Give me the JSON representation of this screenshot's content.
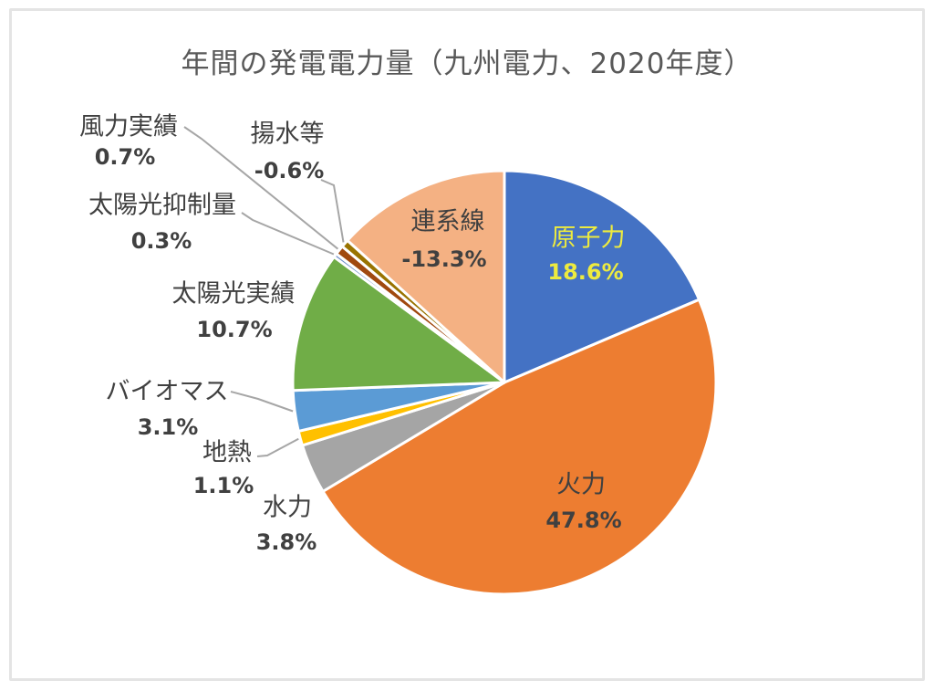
{
  "title": "年間の発電電力量（九州電力、2020年度）",
  "chart_data": {
    "type": "pie",
    "title": "年間の発電電力量（九州電力、2020年度）",
    "start_angle_deg": 0,
    "direction": "clockwise",
    "negative_values_note": "negative values (揚水等, 連系線) are drawn with their absolute share of the pie",
    "slices": [
      {
        "id": "nuclear",
        "label": "原子力",
        "value_pct": 18.6,
        "display": "18.6%",
        "color": "#4472C4",
        "label_placement": "inside",
        "label_color": "#EDEB3F",
        "leader_line": false
      },
      {
        "id": "thermal",
        "label": "火力",
        "value_pct": 47.8,
        "display": "47.8%",
        "color": "#ED7D31",
        "label_placement": "inside",
        "label_color": "#404040",
        "leader_line": false
      },
      {
        "id": "hydro",
        "label": "水力",
        "value_pct": 3.8,
        "display": "3.8%",
        "color": "#A5A5A5",
        "label_placement": "outside",
        "label_color": "#404040",
        "leader_line": false
      },
      {
        "id": "geothermal",
        "label": "地熱",
        "value_pct": 1.1,
        "display": "1.1%",
        "color": "#FFC000",
        "label_placement": "outside",
        "label_color": "#404040",
        "leader_line": true
      },
      {
        "id": "biomass",
        "label": "バイオマス",
        "value_pct": 3.1,
        "display": "3.1%",
        "color": "#5B9BD5",
        "label_placement": "outside",
        "label_color": "#404040",
        "leader_line": true
      },
      {
        "id": "solar-actual",
        "label": "太陽光実績",
        "value_pct": 10.7,
        "display": "10.7%",
        "color": "#70AD47",
        "label_placement": "outside",
        "label_color": "#404040",
        "leader_line": false
      },
      {
        "id": "solar-curtailment",
        "label": "太陽光抑制量",
        "value_pct": 0.3,
        "display": "0.3%",
        "color": "#6E8FC9",
        "label_placement": "outside",
        "label_color": "#404040",
        "leader_line": true
      },
      {
        "id": "wind-actual",
        "label": "風力実績",
        "value_pct": 0.7,
        "display": "0.7%",
        "color": "#A0490F",
        "label_placement": "outside",
        "label_color": "#404040",
        "leader_line": true
      },
      {
        "id": "pumped-storage",
        "label": "揚水等",
        "value_pct": -0.6,
        "display": "-0.6%",
        "color": "#997300",
        "label_placement": "outside",
        "label_color": "#404040",
        "leader_line": true
      },
      {
        "id": "interconnection",
        "label": "連系線",
        "value_pct": -13.3,
        "display": "-13.3%",
        "color": "#F4B183",
        "label_placement": "inside",
        "label_color": "#404040",
        "leader_line": false
      }
    ]
  },
  "colors": {
    "background": "#FFFFFF",
    "frame_border": "#E4E4E4",
    "title_text": "#595959",
    "label_text": "#404040",
    "nuclear_label_text": "#EDEB3F",
    "leader_line": "#A6A6A6",
    "slice_border": "#FFFFFF"
  }
}
